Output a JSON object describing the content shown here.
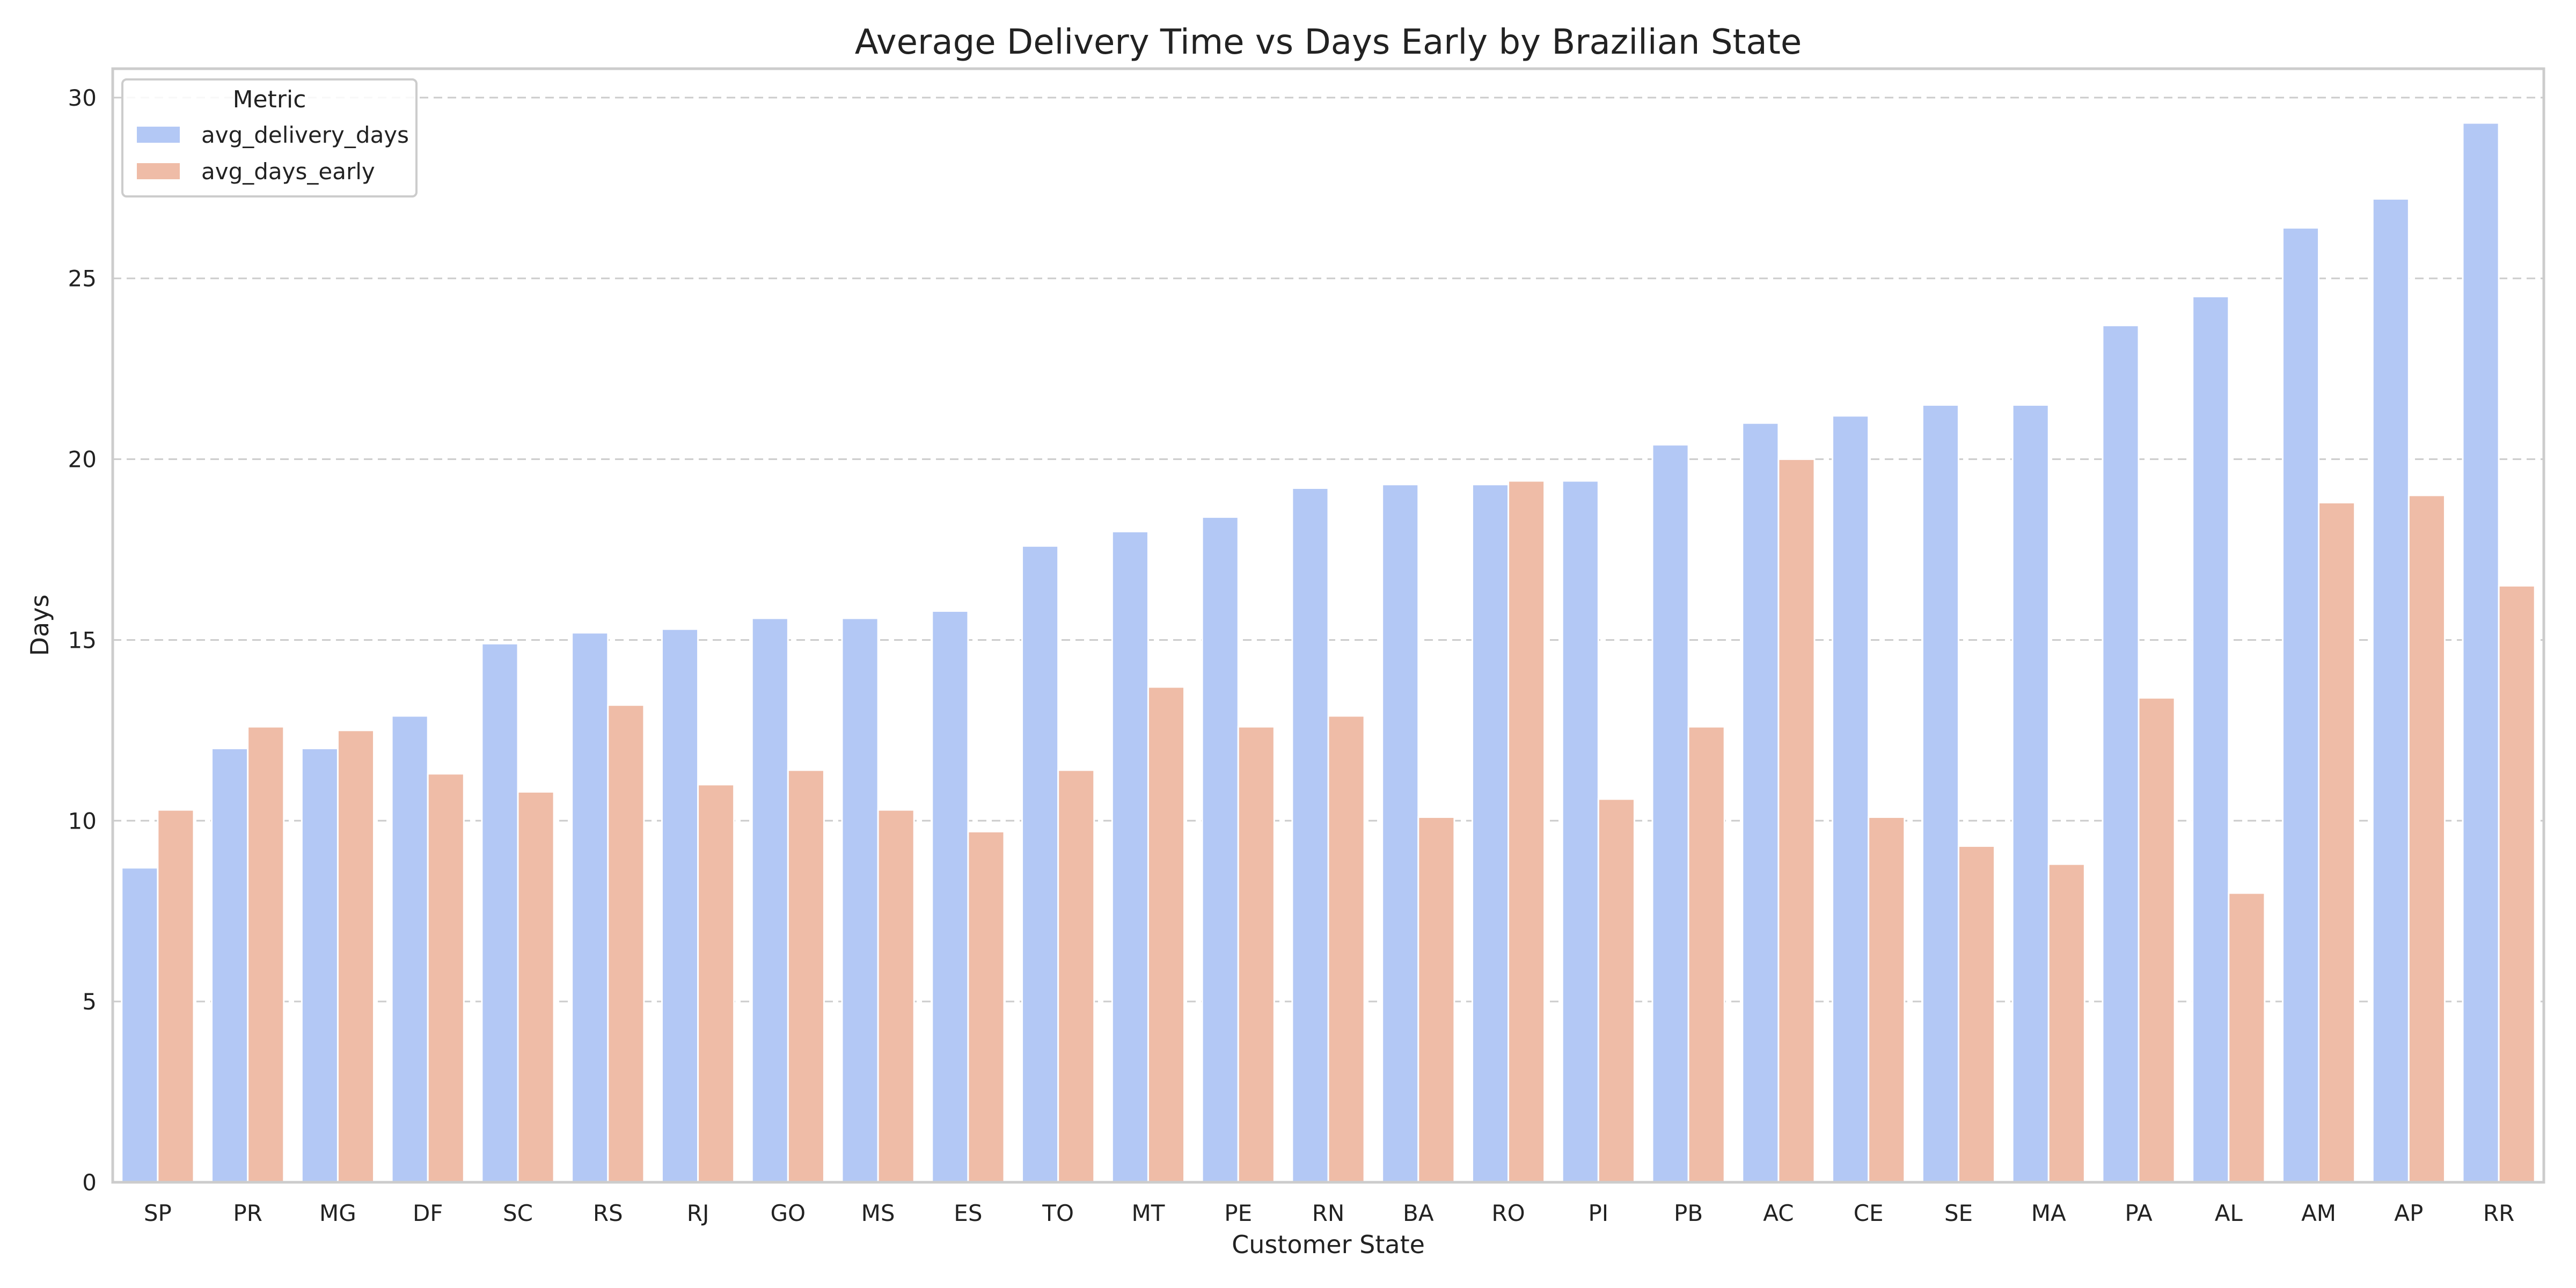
{
  "chart_data": {
    "type": "bar",
    "title": "Average Delivery Time vs Days Early by Brazilian State",
    "xlabel": "Customer State",
    "ylabel": "Days",
    "ylim": [
      0,
      30.8
    ],
    "yticks": [
      0,
      5,
      10,
      15,
      20,
      25,
      30
    ],
    "grid": true,
    "legend": {
      "title": "Metric",
      "placement": "top-left"
    },
    "categories": [
      "SP",
      "PR",
      "MG",
      "DF",
      "SC",
      "RS",
      "RJ",
      "GO",
      "MS",
      "ES",
      "TO",
      "MT",
      "PE",
      "RN",
      "BA",
      "RO",
      "PI",
      "PB",
      "AC",
      "CE",
      "SE",
      "MA",
      "PA",
      "AL",
      "AM",
      "AP",
      "RR"
    ],
    "series": [
      {
        "name": "avg_delivery_days",
        "color": "#b3c8f5",
        "values": [
          8.7,
          12.0,
          12.0,
          12.9,
          14.9,
          15.2,
          15.3,
          15.6,
          15.6,
          15.8,
          17.6,
          18.0,
          18.4,
          19.2,
          19.3,
          19.3,
          19.4,
          20.4,
          21.0,
          21.2,
          21.5,
          21.5,
          23.7,
          24.5,
          26.4,
          27.2,
          29.3
        ]
      },
      {
        "name": "avg_days_early",
        "color": "#efbca7",
        "values": [
          10.3,
          12.6,
          12.5,
          11.3,
          10.8,
          13.2,
          11.0,
          11.4,
          10.3,
          9.7,
          11.4,
          13.7,
          12.6,
          12.9,
          10.1,
          19.4,
          10.6,
          12.6,
          20.0,
          10.1,
          9.3,
          8.8,
          13.4,
          8.0,
          18.8,
          19.0,
          16.5
        ]
      }
    ]
  }
}
